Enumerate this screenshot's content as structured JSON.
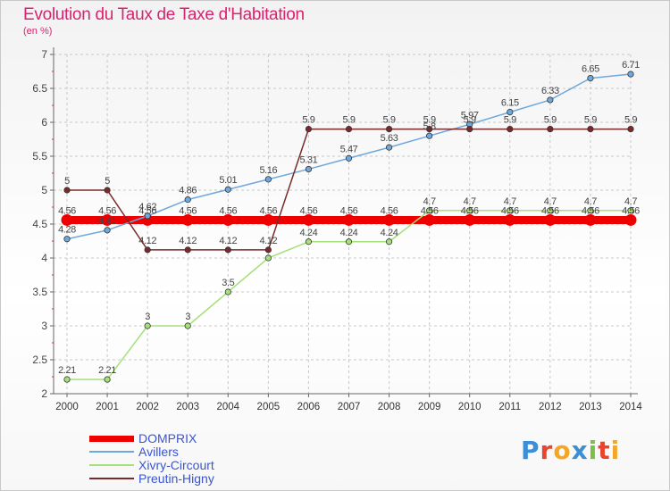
{
  "header": {
    "title": "Evolution du Taux de Taxe d'Habitation",
    "subtitle": "(en %)"
  },
  "logo": {
    "text": "Proxiti",
    "letter_colors": [
      "#3b8fd6",
      "#e8452c",
      "#f5a623",
      "#3b8fd6",
      "#7ac043",
      "#e8452c",
      "#f5a623"
    ]
  },
  "chart_data": {
    "type": "line",
    "title": "Evolution du Taux de Taxe d'Habitation",
    "ylabel": "(en %)",
    "xlabel": "",
    "x": [
      "2000",
      "2001",
      "2002",
      "2003",
      "2004",
      "2005",
      "2006",
      "2007",
      "2008",
      "2009",
      "2010",
      "2011",
      "2012",
      "2013",
      "2014"
    ],
    "ylim": [
      2,
      7
    ],
    "yticks": [
      "2",
      "2.5",
      "3",
      "3.5",
      "4",
      "4.5",
      "5",
      "5.5",
      "6",
      "6.5",
      "7"
    ],
    "grid": true,
    "legend_position": "bottom-left",
    "series": [
      {
        "name": "DOMPRIX",
        "color": "#ee0000",
        "values": [
          4.56,
          4.56,
          4.56,
          4.56,
          4.56,
          4.56,
          4.56,
          4.56,
          4.56,
          4.56,
          4.56,
          4.56,
          4.56,
          4.56,
          4.56
        ],
        "labels": [
          "4.56",
          "4.56",
          "4.56",
          "4.56",
          "4.56",
          "4.56",
          "4.56",
          "4.56",
          "4.56",
          "4.56",
          "4.56",
          "4.56",
          "4.56",
          "4.56",
          "4.56"
        ]
      },
      {
        "name": "Avillers",
        "color": "#6fa8dc",
        "values": [
          4.28,
          4.41,
          4.62,
          4.86,
          5.01,
          5.16,
          5.31,
          5.47,
          5.63,
          5.8,
          5.97,
          6.15,
          6.33,
          6.65,
          6.71
        ],
        "labels": [
          "4.28",
          "4.41",
          "4.62",
          "4.86",
          "5.01",
          "5.16",
          "5.31",
          "5.47",
          "5.63",
          "5.8",
          "5.97",
          "6.15",
          "6.33",
          "6.65",
          "6.71"
        ]
      },
      {
        "name": "Xivry-Circourt",
        "color": "#a6e07a",
        "values": [
          2.21,
          2.21,
          3,
          3,
          3.5,
          4,
          4.24,
          4.24,
          4.24,
          4.7,
          4.7,
          4.7,
          4.7,
          4.7,
          4.7
        ],
        "labels": [
          "2.21",
          "2.21",
          "3",
          "3",
          "3.5",
          "",
          "4.24",
          "4.24",
          "4.24",
          "4.7",
          "4.7",
          "4.7",
          "4.7",
          "4.7",
          "4.7"
        ]
      },
      {
        "name": "Preutin-Higny",
        "color": "#7a2a2a",
        "values": [
          5,
          5,
          4.12,
          4.12,
          4.12,
          4.12,
          5.9,
          5.9,
          5.9,
          5.9,
          5.9,
          5.9,
          5.9,
          5.9,
          5.9
        ],
        "labels": [
          "5",
          "5",
          "4.12",
          "4.12",
          "4.12",
          "4.12",
          "5.9",
          "5.9",
          "5.9",
          "5.9",
          "5.9",
          "5.9",
          "5.9",
          "5.9",
          "5.9"
        ]
      }
    ]
  }
}
